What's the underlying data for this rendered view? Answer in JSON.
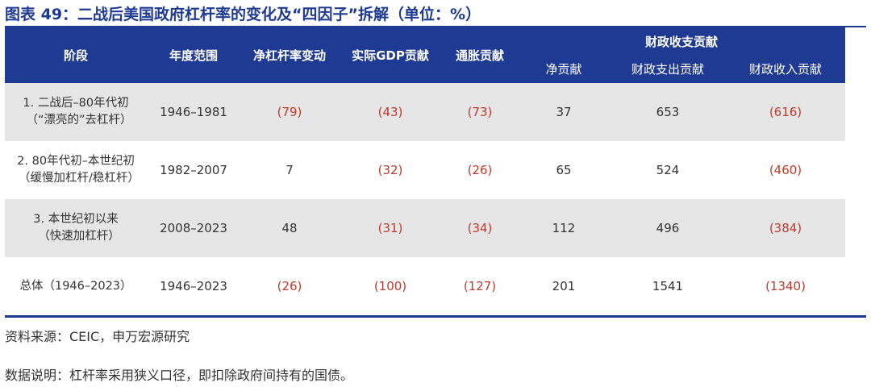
{
  "title": "图表 49：二战后美国政府杠杆率的变化及“四因子”拆解（单位：%）",
  "header": {
    "stage": "阶段",
    "years": "年度范围",
    "leverage_change": "净杠杆率变动",
    "gdp": "实际GDP贡献",
    "inflation": "通胀贡献",
    "fiscal_group": "财政收支贡献",
    "fiscal_net": "净贡献",
    "fiscal_spend": "财政支出贡献",
    "fiscal_revenue": "财政收入贡献"
  },
  "rows": [
    {
      "stage_line1": "1. 二战后–80年代初",
      "stage_line2": "（“漂亮的”去杠杆）",
      "years": "1946–1981",
      "leverage_change": "(79)",
      "gdp": "(43)",
      "inflation": "(73)",
      "fiscal_net": "37",
      "fiscal_spend": "653",
      "fiscal_revenue": "(616)"
    },
    {
      "stage_line1": "2. 80年代初–本世纪初",
      "stage_line2": "（缓慢加杠杆/稳杠杆）",
      "years": "1982–2007",
      "leverage_change": "7",
      "gdp": "(32)",
      "inflation": "(26)",
      "fiscal_net": "65",
      "fiscal_spend": "524",
      "fiscal_revenue": "(460)"
    },
    {
      "stage_line1": "3. 本世纪初以来",
      "stage_line2": "（快速加杠杆）",
      "years": "2008–2023",
      "leverage_change": "48",
      "gdp": "(31)",
      "inflation": "(34)",
      "fiscal_net": "112",
      "fiscal_spend": "496",
      "fiscal_revenue": "(384)"
    },
    {
      "stage_line1": "总体（1946–2023）",
      "stage_line2": "",
      "years": "1946–2023",
      "leverage_change": "(26)",
      "gdp": "(100)",
      "inflation": "(127)",
      "fiscal_net": "201",
      "fiscal_spend": "1541",
      "fiscal_revenue": "(1340)"
    }
  ],
  "colors": {
    "accent": "#1f3a93",
    "negative": "#c0392b",
    "row_shade": "#e6e6e6"
  },
  "source": "资料来源：CEIC，申万宏源研究",
  "note": "数据说明：杠杆率采用狭义口径，即扣除政府间持有的国债。"
}
